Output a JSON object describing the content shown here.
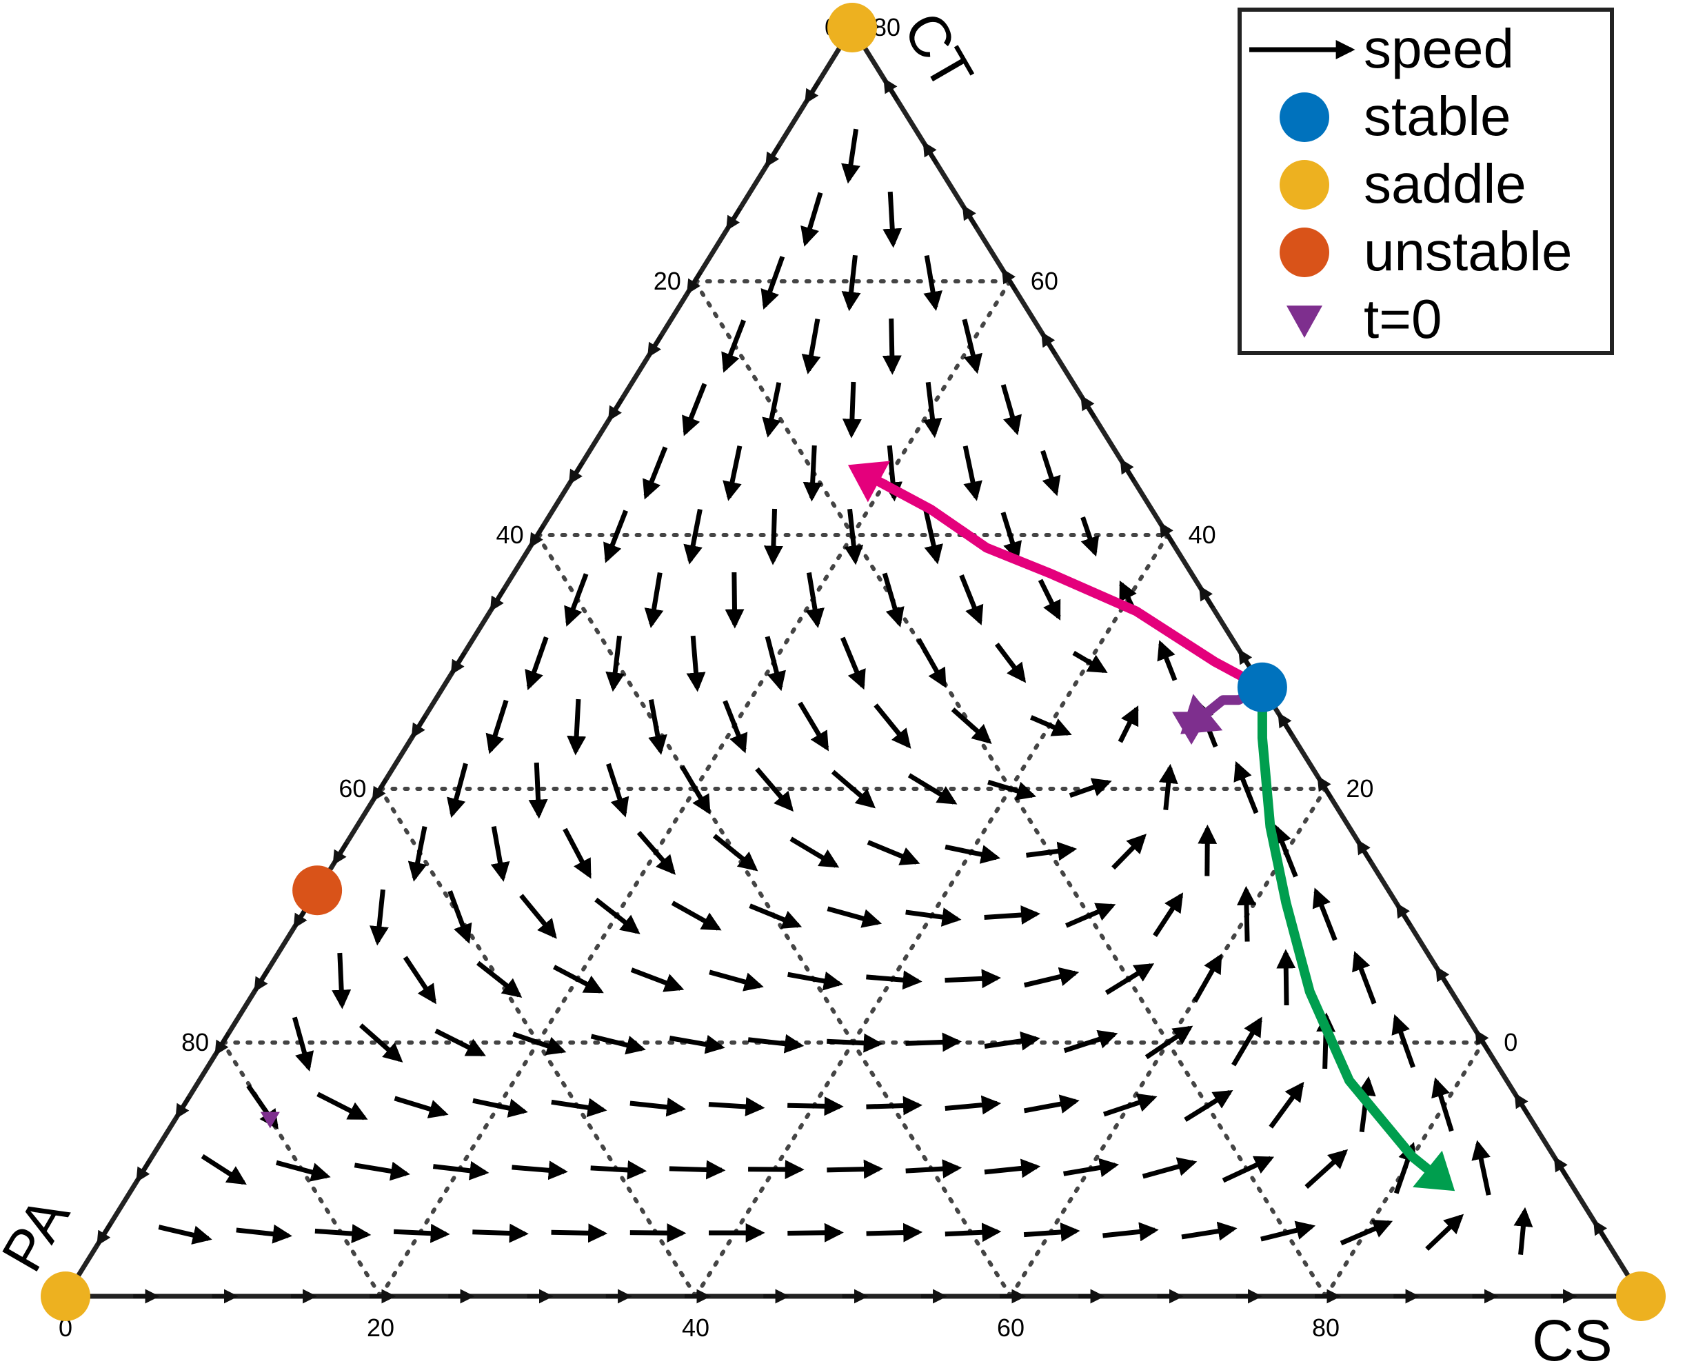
{
  "chart_data": {
    "type": "scatter",
    "subtype": "ternary-vector-field",
    "title": "",
    "vertex_labels": {
      "top": "CT",
      "left": "PA",
      "right": "CS"
    },
    "ticks": {
      "left": [
        "0",
        "20",
        "40",
        "60",
        "80"
      ],
      "right": [
        "80",
        "60",
        "40",
        "20",
        "0"
      ],
      "bottom": [
        "0",
        "20",
        "40",
        "60",
        "80"
      ]
    },
    "grid": true,
    "legend": {
      "position": "top-right",
      "entries": [
        {
          "label": "speed",
          "marker": "arrow"
        },
        {
          "label": "stable",
          "marker": "circle",
          "color": "#0072BD"
        },
        {
          "label": "saddle",
          "marker": "circle",
          "color": "#EDB120"
        },
        {
          "label": "unstable",
          "marker": "circle",
          "color": "#D95319"
        },
        {
          "label": "t=0",
          "marker": "triangle-down",
          "color": "#7E2F8E"
        }
      ]
    },
    "points": {
      "saddle": [
        {
          "PA": 100,
          "CS": 0,
          "CT": 0
        },
        {
          "PA": 0,
          "CS": 100,
          "CT": 0
        },
        {
          "PA": 0,
          "CS": 0,
          "CT": 100
        }
      ],
      "unstable": [
        {
          "PA": 68,
          "CS": 0,
          "CT": 32
        }
      ],
      "stable": [
        {
          "PA": 0,
          "CS": 52,
          "CT": 48
        }
      ],
      "t0": [
        {
          "PA": 6,
          "CS": 49,
          "CT": 45
        },
        {
          "PA": 80,
          "CS": 6,
          "CT": 14
        }
      ]
    },
    "trajectories": [
      {
        "color": "#E4007C",
        "points": [
          [
            0,
            52,
            48
          ],
          [
            2,
            48,
            50
          ],
          [
            5,
            41,
            54
          ],
          [
            9,
            34,
            57
          ],
          [
            12,
            29,
            59
          ],
          [
            14,
            24,
            62
          ],
          [
            16,
            20,
            64
          ],
          [
            17,
            18,
            65
          ]
        ]
      },
      {
        "color": "#009E4E",
        "points": [
          [
            0,
            52,
            48
          ],
          [
            2,
            54,
            44
          ],
          [
            5,
            58,
            37
          ],
          [
            7,
            62,
            31
          ],
          [
            9,
            67,
            24
          ],
          [
            10,
            73,
            17
          ],
          [
            9,
            80,
            11
          ],
          [
            8,
            83,
            9
          ]
        ]
      },
      {
        "color": "#7E2F8E",
        "points": [
          [
            0,
            52,
            48
          ],
          [
            2,
            51,
            47
          ],
          [
            3,
            50,
            47
          ],
          [
            6,
            49,
            45
          ]
        ]
      }
    ],
    "colors": {
      "grid": "#444444",
      "frame": "#222222",
      "arrow": "#000000",
      "legend_border": "#222222"
    }
  }
}
